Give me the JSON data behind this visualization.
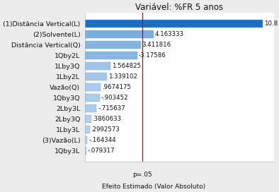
{
  "title": "Variável: %FR 5 anos",
  "xlabel": "Efeito Estimado (Valor Absoluto)",
  "p_label": "p=.05",
  "categories": [
    "(1)Distância Vertical(L)",
    "(2)Solvente(L)",
    "Distância Vertical(Q)",
    "1Qby2L",
    "1Lby3Q",
    "1Lby2L",
    "Vazão(Q)",
    "1Qby3Q",
    "2Lby3L",
    "2Lby3Q",
    "1Lby3L",
    "(3)Vazão(L)",
    "1Qby3L"
  ],
  "values": [
    10.8,
    4.163333,
    3.411816,
    3.17586,
    1.564825,
    1.339102,
    0.9674175,
    0.903452,
    0.715637,
    0.3860633,
    0.2992573,
    0.164344,
    0.079317
  ],
  "value_labels": [
    "10.8",
    "4.163333",
    "3.411816",
    "-3.17586",
    "1.564825",
    "1.339102",
    ".9674175",
    "-.903452",
    "-.715637",
    ".3860633",
    ".2992573",
    "-.164344",
    "-.079317"
  ],
  "p05_line": 3.5,
  "bar_color_strong": "#1a6fc4",
  "bar_color_light": "#b8d4ee",
  "bar_border_color": "#7aadd4",
  "background_color": "#ececec",
  "plot_bg": "#ffffff",
  "red_line_color": "#cc0000",
  "text_color": "#111111",
  "title_fontsize": 8.5,
  "label_fontsize": 6.8,
  "tick_fontsize": 6.5,
  "value_fontsize": 6.2,
  "xlim_max": 11.5,
  "bar_height": 0.72
}
